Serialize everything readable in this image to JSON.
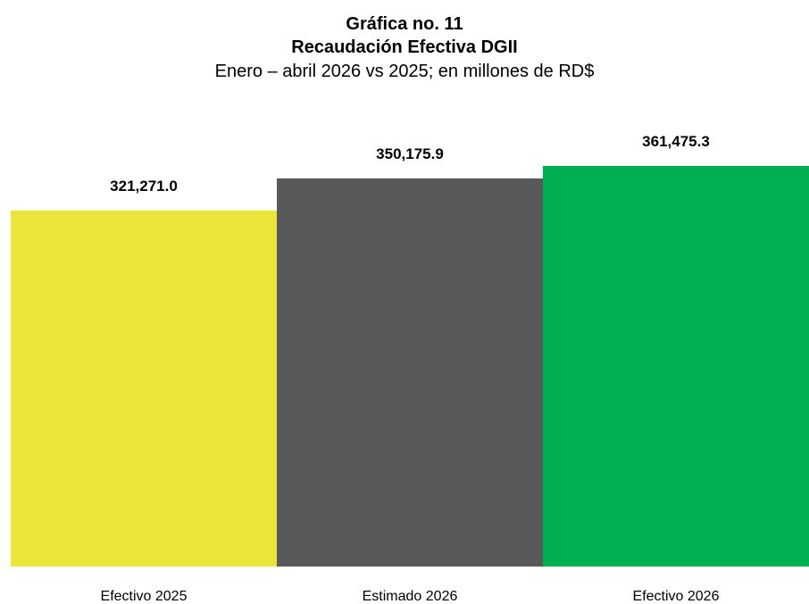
{
  "chart_data": {
    "type": "bar",
    "title_line1": "Gráfica no. 11",
    "title_line2": "Recaudación Efectiva DGII",
    "subtitle": "Enero – abril 2026 vs 2025; en millones de RD$",
    "categories": [
      "Efectivo 2025",
      "Estimado 2026",
      "Efectivo 2026"
    ],
    "values": [
      321271.0,
      350175.9,
      361475.3
    ],
    "value_labels": [
      "321,271.0",
      "350,175.9",
      "361,475.3"
    ],
    "colors": [
      "#EBE53A",
      "#595959",
      "#00B050"
    ],
    "ylim": [
      0,
      361475.3
    ],
    "grid": false,
    "legend": "none"
  }
}
